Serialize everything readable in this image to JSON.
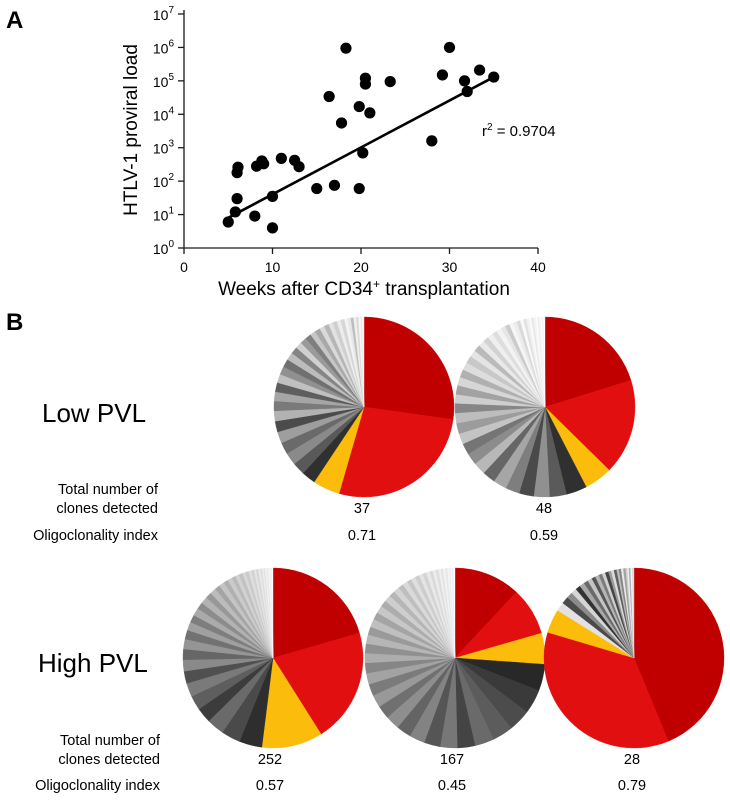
{
  "figure": {
    "panel_a": "A",
    "panel_b": "B"
  },
  "chart_data": [
    {
      "type": "scatter",
      "xlabel": "Weeks after CD34",
      "xlabel_sup": "+",
      "xlabel_tail": " transplantation",
      "ylabel": "HTLV-1 proviral load",
      "xlim": [
        0,
        40
      ],
      "ylim_log10": [
        0,
        7
      ],
      "yscale": "log",
      "xticks": [
        "0",
        "10",
        "20",
        "30",
        "40"
      ],
      "yticks": [
        {
          "base": "10",
          "exp": "0"
        },
        {
          "base": "10",
          "exp": "1"
        },
        {
          "base": "10",
          "exp": "2"
        },
        {
          "base": "10",
          "exp": "3"
        },
        {
          "base": "10",
          "exp": "4"
        },
        {
          "base": "10",
          "exp": "5"
        },
        {
          "base": "10",
          "exp": "6"
        },
        {
          "base": "10",
          "exp": "7"
        }
      ],
      "annotation": {
        "text_a": "r",
        "text_sup": "2",
        "text_b": " = 0.9704"
      },
      "fit_line": {
        "x": [
          5,
          35
        ],
        "y": [
          8,
          130000
        ]
      },
      "points": [
        {
          "x": 5,
          "y": 6
        },
        {
          "x": 5.8,
          "y": 12
        },
        {
          "x": 6,
          "y": 30
        },
        {
          "x": 6,
          "y": 180
        },
        {
          "x": 6.1,
          "y": 260
        },
        {
          "x": 8,
          "y": 9
        },
        {
          "x": 8.2,
          "y": 280
        },
        {
          "x": 8.8,
          "y": 400
        },
        {
          "x": 9,
          "y": 330
        },
        {
          "x": 10,
          "y": 4
        },
        {
          "x": 10,
          "y": 35
        },
        {
          "x": 11,
          "y": 480
        },
        {
          "x": 12.5,
          "y": 420
        },
        {
          "x": 13,
          "y": 270
        },
        {
          "x": 15,
          "y": 60
        },
        {
          "x": 16.4,
          "y": 34000
        },
        {
          "x": 17,
          "y": 75
        },
        {
          "x": 17.8,
          "y": 5500
        },
        {
          "x": 18.3,
          "y": 950000
        },
        {
          "x": 19.8,
          "y": 60
        },
        {
          "x": 19.8,
          "y": 17000
        },
        {
          "x": 20.2,
          "y": 700
        },
        {
          "x": 20.5,
          "y": 80000
        },
        {
          "x": 20.5,
          "y": 120000
        },
        {
          "x": 21,
          "y": 11000
        },
        {
          "x": 23.3,
          "y": 95000
        },
        {
          "x": 28,
          "y": 1600
        },
        {
          "x": 29.2,
          "y": 150000
        },
        {
          "x": 30,
          "y": 1000000
        },
        {
          "x": 31.7,
          "y": 100000
        },
        {
          "x": 32,
          "y": 48000
        },
        {
          "x": 33.4,
          "y": 210000
        },
        {
          "x": 35,
          "y": 130000
        }
      ]
    },
    {
      "type": "pie",
      "group": "Low PVL",
      "total_clones": "37",
      "oligoclonality_index": "0.71",
      "slices": [
        {
          "value": 28.0,
          "color": "#c00000"
        },
        {
          "value": 28.0,
          "color": "#e10f0f"
        },
        {
          "value": 5.0,
          "color": "#fbbc0b"
        },
        {
          "value": 2.6,
          "color": "#303030"
        },
        {
          "value": 2.3,
          "color": "#595959"
        },
        {
          "value": 2.3,
          "color": "#8a8a8a"
        },
        {
          "value": 2.2,
          "color": "#6a6a6a"
        },
        {
          "value": 2.1,
          "color": "#9e9e9e"
        },
        {
          "value": 2.0,
          "color": "#4b4b4b"
        },
        {
          "value": 1.9,
          "color": "#b2b2b2"
        },
        {
          "value": 1.8,
          "color": "#7a7a7a"
        },
        {
          "value": 1.7,
          "color": "#a5a5a5"
        },
        {
          "value": 1.7,
          "color": "#5e5e5e"
        },
        {
          "value": 1.6,
          "color": "#c0c0c0"
        },
        {
          "value": 1.5,
          "color": "#909090"
        },
        {
          "value": 1.5,
          "color": "#707070"
        },
        {
          "value": 1.4,
          "color": "#bcbcbc"
        },
        {
          "value": 1.3,
          "color": "#858585"
        },
        {
          "value": 1.2,
          "color": "#d0d0d0"
        },
        {
          "value": 1.2,
          "color": "#9a9a9a"
        },
        {
          "value": 1.1,
          "color": "#7e7e7e"
        },
        {
          "value": 1.0,
          "color": "#c6c6c6"
        },
        {
          "value": 1.0,
          "color": "#a8a8a8"
        },
        {
          "value": 0.9,
          "color": "#dadada"
        },
        {
          "value": 0.9,
          "color": "#b6b6b6"
        },
        {
          "value": 0.8,
          "color": "#e2e2e2"
        },
        {
          "value": 0.8,
          "color": "#cfcfcf"
        },
        {
          "value": 0.7,
          "color": "#ededed"
        },
        {
          "value": 0.7,
          "color": "#d6d6d6"
        },
        {
          "value": 0.6,
          "color": "#f3f3f3"
        },
        {
          "value": 0.6,
          "color": "#e6e6e6"
        },
        {
          "value": 0.5,
          "color": "#bdbdbd"
        },
        {
          "value": 0.5,
          "color": "#f0f0f0"
        },
        {
          "value": 0.4,
          "color": "#d9d9d9"
        },
        {
          "value": 0.4,
          "color": "#f6f6f6"
        },
        {
          "value": 0.3,
          "color": "#e9e9e9"
        },
        {
          "value": 0.3,
          "color": "#fafafa"
        }
      ]
    },
    {
      "type": "pie",
      "group": "Low PVL",
      "total_clones": "48",
      "oligoclonality_index": "0.59",
      "slices": [
        {
          "value": 20.0,
          "color": "#c00000"
        },
        {
          "value": 17.0,
          "color": "#e10f0f"
        },
        {
          "value": 5.0,
          "color": "#fbbc0b"
        },
        {
          "value": 3.7,
          "color": "#303030"
        },
        {
          "value": 3.0,
          "color": "#5a5a5a"
        },
        {
          "value": 2.8,
          "color": "#909090"
        },
        {
          "value": 2.6,
          "color": "#4a4a4a"
        },
        {
          "value": 2.5,
          "color": "#7e7e7e"
        },
        {
          "value": 2.4,
          "color": "#a6a6a6"
        },
        {
          "value": 2.3,
          "color": "#666666"
        },
        {
          "value": 2.2,
          "color": "#b8b8b8"
        },
        {
          "value": 2.1,
          "color": "#8c8c8c"
        },
        {
          "value": 2.0,
          "color": "#757575"
        },
        {
          "value": 1.9,
          "color": "#c4c4c4"
        },
        {
          "value": 1.9,
          "color": "#9c9c9c"
        },
        {
          "value": 1.8,
          "color": "#bdbdbd"
        },
        {
          "value": 1.7,
          "color": "#868686"
        },
        {
          "value": 1.6,
          "color": "#cecece"
        },
        {
          "value": 1.6,
          "color": "#a2a2a2"
        },
        {
          "value": 1.5,
          "color": "#d6d6d6"
        },
        {
          "value": 1.4,
          "color": "#b0b0b0"
        },
        {
          "value": 1.4,
          "color": "#dddddd"
        },
        {
          "value": 1.3,
          "color": "#c8c8c8"
        },
        {
          "value": 1.2,
          "color": "#e4e4e4"
        },
        {
          "value": 1.2,
          "color": "#bababa"
        },
        {
          "value": 1.1,
          "color": "#e9e9e9"
        },
        {
          "value": 1.0,
          "color": "#d2d2d2"
        },
        {
          "value": 1.0,
          "color": "#efefef"
        },
        {
          "value": 0.9,
          "color": "#dedede"
        },
        {
          "value": 0.9,
          "color": "#f3f3f3"
        },
        {
          "value": 0.8,
          "color": "#e6e6e6"
        },
        {
          "value": 0.8,
          "color": "#cbcbcb"
        },
        {
          "value": 0.7,
          "color": "#f6f6f6"
        },
        {
          "value": 0.7,
          "color": "#ececec"
        },
        {
          "value": 0.6,
          "color": "#d9d9d9"
        },
        {
          "value": 0.6,
          "color": "#f9f9f9"
        },
        {
          "value": 0.5,
          "color": "#e1e1e1"
        },
        {
          "value": 0.5,
          "color": "#f1f1f1"
        },
        {
          "value": 0.4,
          "color": "#fbfbfb"
        },
        {
          "value": 0.4,
          "color": "#e8e8e8"
        },
        {
          "value": 0.4,
          "color": "#f4f4f4"
        },
        {
          "value": 0.3,
          "color": "#fcfcfc"
        },
        {
          "value": 0.3,
          "color": "#eeeeee"
        },
        {
          "value": 0.3,
          "color": "#f7f7f7"
        },
        {
          "value": 0.2,
          "color": "#fdfdfd"
        },
        {
          "value": 0.2,
          "color": "#f2f2f2"
        },
        {
          "value": 0.2,
          "color": "#fafafa"
        },
        {
          "value": 0.1,
          "color": "#fefefe"
        }
      ]
    },
    {
      "type": "pie",
      "group": "High PVL",
      "total_clones": "252",
      "oligoclonality_index": "0.57",
      "slices": [
        {
          "value": 15.0,
          "color": "#c00000"
        },
        {
          "value": 15.0,
          "color": "#e10f0f"
        },
        {
          "value": 8.0,
          "color": "#fbbc0b"
        },
        {
          "value": 3.0,
          "color": "#2e2e2e"
        },
        {
          "value": 2.5,
          "color": "#4a4a4a"
        },
        {
          "value": 2.3,
          "color": "#6a6a6a"
        },
        {
          "value": 2.0,
          "color": "#3c3c3c"
        },
        {
          "value": 1.9,
          "color": "#5e5e5e"
        },
        {
          "value": 1.8,
          "color": "#7a7a7a"
        },
        {
          "value": 1.6,
          "color": "#505050"
        },
        {
          "value": 1.5,
          "color": "#8a8a8a"
        },
        {
          "value": 1.4,
          "color": "#666666"
        },
        {
          "value": 1.3,
          "color": "#959595"
        },
        {
          "value": 1.2,
          "color": "#727272"
        },
        {
          "value": 1.1,
          "color": "#a0a0a0"
        },
        {
          "value": 1.0,
          "color": "#7e7e7e"
        },
        {
          "value": 1.0,
          "color": "#aaaaaa"
        },
        {
          "value": 0.9,
          "color": "#8c8c8c"
        },
        {
          "value": 0.9,
          "color": "#b3b3b3"
        },
        {
          "value": 0.8,
          "color": "#989898"
        },
        {
          "value": 0.8,
          "color": "#bcbcbc"
        },
        {
          "value": 0.7,
          "color": "#a4a4a4"
        },
        {
          "value": 0.7,
          "color": "#c4c4c4"
        },
        {
          "value": 0.6,
          "color": "#b0b0b0"
        },
        {
          "value": 0.6,
          "color": "#cbcbcb"
        },
        {
          "value": 0.5,
          "color": "#bababa"
        },
        {
          "value": 0.5,
          "color": "#d2d2d2"
        },
        {
          "value": 0.5,
          "color": "#c2c2c2"
        },
        {
          "value": 0.4,
          "color": "#d8d8d8"
        },
        {
          "value": 0.4,
          "color": "#cacaca"
        },
        {
          "value": 0.4,
          "color": "#dedede"
        },
        {
          "value": 0.3,
          "color": "#d1d1d1"
        },
        {
          "value": 0.3,
          "color": "#e4e4e4"
        },
        {
          "value": 0.3,
          "color": "#d7d7d7"
        },
        {
          "value": 0.3,
          "color": "#e9e9e9"
        },
        {
          "value": 0.2,
          "color": "#dcdcdc"
        },
        {
          "value": 0.2,
          "color": "#eeeeee"
        },
        {
          "value": 0.2,
          "color": "#e2e2e2"
        },
        {
          "value": 0.2,
          "color": "#f2f2f2"
        },
        {
          "value": 0.2,
          "color": "#e7e7e7"
        },
        {
          "value": 0.2,
          "color": "#f5f5f5"
        },
        {
          "value": 0.1,
          "color": "#ececec"
        },
        {
          "value": 0.1,
          "color": "#f8f8f8"
        },
        {
          "value": 0.1,
          "color": "#f0f0f0"
        },
        {
          "value": 0.1,
          "color": "#fafafa"
        }
      ]
    },
    {
      "type": "pie",
      "group": "High PVL",
      "total_clones": "167",
      "oligoclonality_index": "0.45",
      "slices": [
        {
          "value": 9.0,
          "color": "#c00000"
        },
        {
          "value": 6.5,
          "color": "#e10f0f"
        },
        {
          "value": 4.2,
          "color": "#fbbc0b"
        },
        {
          "value": 3.6,
          "color": "#282828"
        },
        {
          "value": 3.3,
          "color": "#3a3a3a"
        },
        {
          "value": 3.0,
          "color": "#4c4c4c"
        },
        {
          "value": 2.8,
          "color": "#5c5c5c"
        },
        {
          "value": 2.6,
          "color": "#6a6a6a"
        },
        {
          "value": 2.4,
          "color": "#444444"
        },
        {
          "value": 2.3,
          "color": "#777777"
        },
        {
          "value": 2.2,
          "color": "#555555"
        },
        {
          "value": 2.1,
          "color": "#838383"
        },
        {
          "value": 2.0,
          "color": "#646464"
        },
        {
          "value": 1.9,
          "color": "#8e8e8e"
        },
        {
          "value": 1.8,
          "color": "#707070"
        },
        {
          "value": 1.7,
          "color": "#999999"
        },
        {
          "value": 1.6,
          "color": "#7b7b7b"
        },
        {
          "value": 1.5,
          "color": "#a3a3a3"
        },
        {
          "value": 1.4,
          "color": "#868686"
        },
        {
          "value": 1.3,
          "color": "#adadad"
        },
        {
          "value": 1.3,
          "color": "#909090"
        },
        {
          "value": 1.2,
          "color": "#b6b6b6"
        },
        {
          "value": 1.1,
          "color": "#9a9a9a"
        },
        {
          "value": 1.1,
          "color": "#bfbfbf"
        },
        {
          "value": 1.0,
          "color": "#a4a4a4"
        },
        {
          "value": 1.0,
          "color": "#c7c7c7"
        },
        {
          "value": 0.9,
          "color": "#adadad"
        },
        {
          "value": 0.9,
          "color": "#cecece"
        },
        {
          "value": 0.8,
          "color": "#b6b6b6"
        },
        {
          "value": 0.8,
          "color": "#d4d4d4"
        },
        {
          "value": 0.7,
          "color": "#bebebe"
        },
        {
          "value": 0.7,
          "color": "#dadada"
        },
        {
          "value": 0.6,
          "color": "#c6c6c6"
        },
        {
          "value": 0.6,
          "color": "#dfdfdf"
        },
        {
          "value": 0.6,
          "color": "#cdcdcd"
        },
        {
          "value": 0.5,
          "color": "#e4e4e4"
        },
        {
          "value": 0.5,
          "color": "#d3d3d3"
        },
        {
          "value": 0.5,
          "color": "#e8e8e8"
        },
        {
          "value": 0.4,
          "color": "#d9d9d9"
        },
        {
          "value": 0.4,
          "color": "#ececec"
        },
        {
          "value": 0.4,
          "color": "#dedede"
        },
        {
          "value": 0.3,
          "color": "#f0f0f0"
        },
        {
          "value": 0.3,
          "color": "#e3e3e3"
        },
        {
          "value": 0.3,
          "color": "#f3f3f3"
        },
        {
          "value": 0.3,
          "color": "#e7e7e7"
        },
        {
          "value": 0.2,
          "color": "#f6f6f6"
        },
        {
          "value": 0.2,
          "color": "#ebebeb"
        },
        {
          "value": 0.2,
          "color": "#f8f8f8"
        },
        {
          "value": 0.2,
          "color": "#efefef"
        },
        {
          "value": 0.2,
          "color": "#fafafa"
        }
      ]
    },
    {
      "type": "pie",
      "group": "High PVL",
      "total_clones": "28",
      "oligoclonality_index": "0.79",
      "slices": [
        {
          "value": 44.0,
          "color": "#c00000"
        },
        {
          "value": 36.0,
          "color": "#e10f0f"
        },
        {
          "value": 4.3,
          "color": "#fbbc0b"
        },
        {
          "value": 1.6,
          "color": "#e2e2e2"
        },
        {
          "value": 1.3,
          "color": "#4a4a4a"
        },
        {
          "value": 1.1,
          "color": "#8a8a8a"
        },
        {
          "value": 1.0,
          "color": "#d5d5d5"
        },
        {
          "value": 0.9,
          "color": "#333333"
        },
        {
          "value": 0.9,
          "color": "#a8a8a8"
        },
        {
          "value": 0.8,
          "color": "#6a6a6a"
        },
        {
          "value": 0.8,
          "color": "#c4c4c4"
        },
        {
          "value": 0.7,
          "color": "#555555"
        },
        {
          "value": 0.7,
          "color": "#b5b5b5"
        },
        {
          "value": 0.6,
          "color": "#7a7a7a"
        },
        {
          "value": 0.6,
          "color": "#d0d0d0"
        },
        {
          "value": 0.6,
          "color": "#454545"
        },
        {
          "value": 0.5,
          "color": "#9a9a9a"
        },
        {
          "value": 0.5,
          "color": "#dcdcdc"
        },
        {
          "value": 0.5,
          "color": "#606060"
        },
        {
          "value": 0.4,
          "color": "#bcbcbc"
        },
        {
          "value": 0.4,
          "color": "#848484"
        },
        {
          "value": 0.4,
          "color": "#e8e8e8"
        },
        {
          "value": 0.4,
          "color": "#a2a2a2"
        },
        {
          "value": 0.3,
          "color": "#cccccc"
        },
        {
          "value": 0.3,
          "color": "#eeeeee"
        },
        {
          "value": 0.3,
          "color": "#b0b0b0"
        },
        {
          "value": 0.3,
          "color": "#f4f4f4"
        },
        {
          "value": 0.3,
          "color": "#dadada"
        }
      ]
    }
  ],
  "panel_b_rows": {
    "low_label": "Low PVL",
    "high_label": "High PVL",
    "total_label_line1": "Total number of",
    "total_label_line2": "clones detected",
    "oligo_label": "Oligoclonality index"
  }
}
